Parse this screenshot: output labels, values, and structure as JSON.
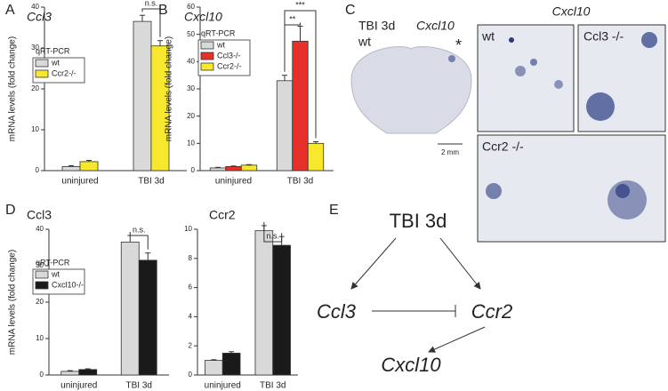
{
  "chart_data": [
    {
      "type": "bar",
      "panel": "A",
      "title": "Ccl3",
      "title_italic": true,
      "y_label": "mRNA levels (fold change)",
      "categories": [
        "uninjured",
        "TBI 3d"
      ],
      "ylim": [
        0,
        40
      ],
      "yticks": [
        0,
        10,
        20,
        30,
        40
      ],
      "legend": true,
      "legend_title": "qRT-PCR",
      "series": [
        {
          "name": "wt",
          "color": "#d9d9d9",
          "values": [
            1,
            36.5
          ],
          "errors": [
            0.2,
            1.5
          ]
        },
        {
          "name": "Ccr2-/-",
          "color": "#f7e82e",
          "values": [
            2.2,
            30.5
          ],
          "errors": [
            0.3,
            1.3
          ]
        }
      ],
      "annotations": [
        {
          "text": "n.s."
        }
      ]
    },
    {
      "type": "bar",
      "panel": "B",
      "title": "Cxcl10",
      "title_italic": true,
      "y_label": "mRNA levels (fold change)",
      "categories": [
        "uninjured",
        "TBI 3d"
      ],
      "ylim": [
        0,
        60
      ],
      "yticks": [
        0,
        10,
        20,
        30,
        40,
        50,
        60
      ],
      "legend": true,
      "legend_title": "qRT-PCR",
      "series": [
        {
          "name": "wt",
          "color": "#d9d9d9",
          "values": [
            1,
            33
          ],
          "errors": [
            0.2,
            2
          ]
        },
        {
          "name": "Ccl3-/-",
          "color": "#e8302a",
          "values": [
            1.5,
            47.5
          ],
          "errors": [
            0.2,
            5.5
          ]
        },
        {
          "name": "Ccr2-/-",
          "color": "#f7e82e",
          "values": [
            2,
            10
          ],
          "errors": [
            0.2,
            0.6
          ]
        }
      ],
      "annotations": [
        {
          "text": "**"
        },
        {
          "text": "***"
        }
      ]
    },
    {
      "type": "bar",
      "panel": "D",
      "title": "Ccl3",
      "title_italic": false,
      "y_label": "mRNA levels (fold change)",
      "categories": [
        "uninjured",
        "TBI 3d"
      ],
      "ylim": [
        0,
        40
      ],
      "yticks": [
        0,
        10,
        20,
        30,
        40
      ],
      "legend": true,
      "legend_title": "qRT-PCR",
      "series": [
        {
          "name": "wt",
          "color": "#d9d9d9",
          "values": [
            1,
            36.5
          ],
          "errors": [
            0.2,
            1.8
          ]
        },
        {
          "name": "Cxcl10-/-",
          "color": "#1a1a1a",
          "values": [
            1.5,
            31.5
          ],
          "errors": [
            0.2,
            2
          ]
        }
      ],
      "annotations": [
        {
          "text": "n.s."
        }
      ]
    },
    {
      "type": "bar",
      "title": "Ccr2",
      "title_italic": false,
      "categories": [
        "uninjured",
        "TBI 3d"
      ],
      "ylim": [
        0,
        10
      ],
      "yticks": [
        0,
        2,
        4,
        6,
        8,
        10
      ],
      "legend": false,
      "series": [
        {
          "color": "#d9d9d9",
          "values": [
            1,
            9.9
          ],
          "errors": [
            0.05,
            0.35
          ]
        },
        {
          "color": "#1a1a1a",
          "values": [
            1.5,
            8.9
          ],
          "errors": [
            0.1,
            0.6
          ]
        }
      ],
      "annotations": [
        {
          "text": "n.s."
        }
      ]
    }
  ],
  "panel_c": {
    "letter": "C",
    "condition": "TBI 3d",
    "genotype": "wt",
    "gene": "Cxcl10",
    "marker": "*",
    "scale": "2 mm",
    "inset_title": "Cxcl10",
    "insets": [
      "wt",
      "Ccl3 -/-",
      "Ccr2 -/-"
    ]
  },
  "diagram": {
    "letter": "E",
    "nodes": [
      "TBI 3d",
      "Ccl3",
      "Ccr2",
      "Cxcl10"
    ]
  }
}
